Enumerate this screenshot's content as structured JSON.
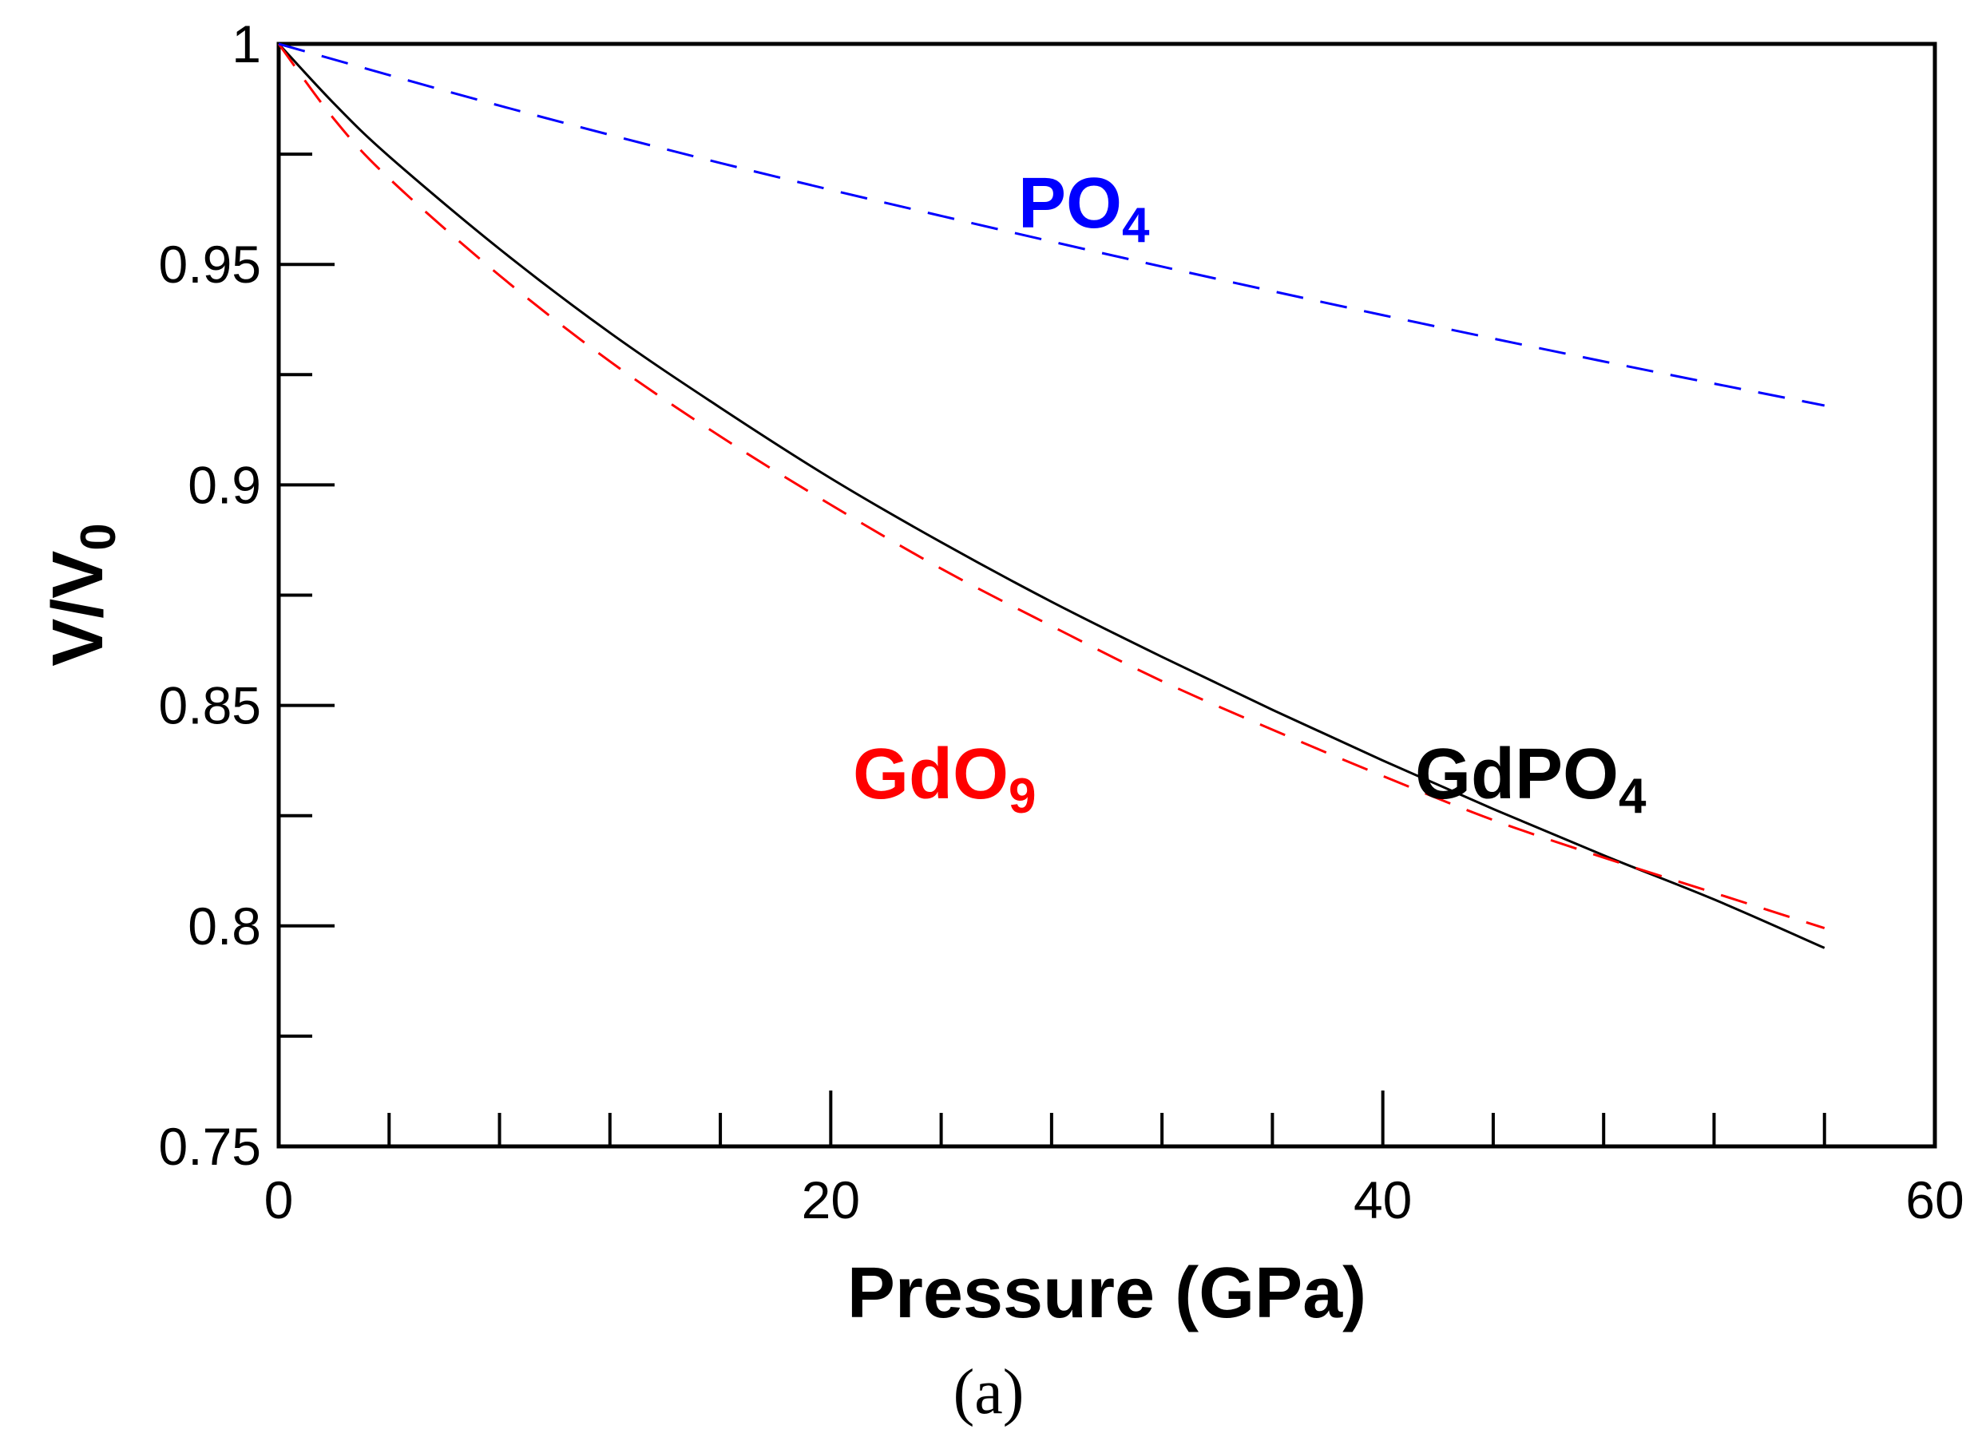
{
  "chart_data": {
    "type": "line",
    "title": "",
    "xlabel": "Pressure (GPa)",
    "ylabel_main": "V/V",
    "ylabel_sub": "0",
    "xlim": [
      0,
      60
    ],
    "ylim": [
      0.75,
      1.0
    ],
    "x_major_ticks": [
      0,
      20,
      40,
      60
    ],
    "x_tick_labels": [
      "0",
      "20",
      "40",
      "60"
    ],
    "x_minor_step": 4,
    "y_major_ticks": [
      0.75,
      0.8,
      0.85,
      0.9,
      0.95,
      1.0
    ],
    "y_tick_labels": [
      "0.75",
      "0.8",
      "0.85",
      "0.9",
      "0.95",
      "1"
    ],
    "y_minor_step": 0.025,
    "grid": false,
    "series": [
      {
        "name": "GdPO4",
        "label_main": "GdPO",
        "label_sub": "4",
        "color": "#000000",
        "dash": "solid",
        "x": [
          0,
          2,
          4,
          8,
          12,
          16,
          20,
          24,
          28,
          32,
          36,
          40,
          44,
          48,
          52,
          56
        ],
        "y": [
          1.0,
          0.9865,
          0.9745,
          0.9535,
          0.9345,
          0.9175,
          0.9015,
          0.887,
          0.8735,
          0.861,
          0.849,
          0.8375,
          0.8265,
          0.816,
          0.806,
          0.795
        ]
      },
      {
        "name": "GdO9",
        "label_main": "GdO",
        "label_sub": "9",
        "color": "#ff0000",
        "dash": "dashed",
        "x": [
          0,
          2,
          4,
          8,
          12,
          16,
          20,
          24,
          28,
          32,
          36,
          40,
          44,
          48,
          52,
          56
        ],
        "y": [
          1.0,
          0.983,
          0.9695,
          0.9475,
          0.928,
          0.911,
          0.8955,
          0.881,
          0.868,
          0.8555,
          0.8445,
          0.834,
          0.824,
          0.8155,
          0.8075,
          0.7995
        ]
      },
      {
        "name": "PO4",
        "label_main": "PO",
        "label_sub": "4",
        "color": "#0000ff",
        "dash": "dashed",
        "x": [
          0,
          8,
          16,
          24,
          32,
          40,
          48,
          56
        ],
        "y": [
          1.0,
          0.986,
          0.973,
          0.961,
          0.9495,
          0.9385,
          0.928,
          0.918
        ]
      }
    ]
  },
  "caption": "(a)"
}
